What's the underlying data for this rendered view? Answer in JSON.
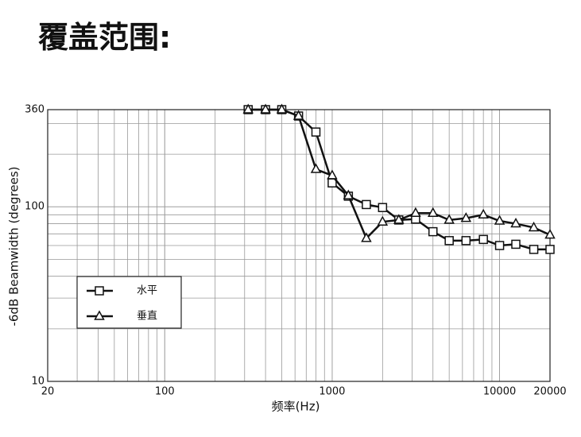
{
  "page_title": "覆盖范围:",
  "chart_data": {
    "type": "line",
    "x_label": "频率(Hz)",
    "y_label": "-6dB Beamwidth (degrees)",
    "x": [
      315,
      400,
      500,
      630,
      800,
      1000,
      1250,
      1600,
      2000,
      2500,
      3150,
      4000,
      5000,
      6300,
      8000,
      10000,
      12500,
      16000,
      20000
    ],
    "series": [
      {
        "name": "水平",
        "color": "#111111",
        "marker": "square",
        "values": [
          360,
          360,
          360,
          331,
          268,
          137,
          115,
          103,
          99,
          84,
          85,
          72,
          64,
          64,
          65,
          60,
          61,
          57,
          57
        ]
      },
      {
        "name": "垂直",
        "color": "#111111",
        "marker": "triangle",
        "values": [
          360,
          360,
          360,
          331,
          164,
          151,
          116,
          66,
          82,
          84,
          92,
          92,
          84,
          86,
          90,
          83,
          80,
          76,
          69
        ]
      }
    ],
    "xlim": [
      20,
      20000
    ],
    "ylim": [
      10,
      360
    ],
    "xticks": [
      20,
      100,
      1000,
      10000,
      20000
    ],
    "yticks": [
      10,
      100,
      360
    ],
    "xscale": "log",
    "yscale": "log",
    "grid": true,
    "legend_position": "lower left"
  }
}
